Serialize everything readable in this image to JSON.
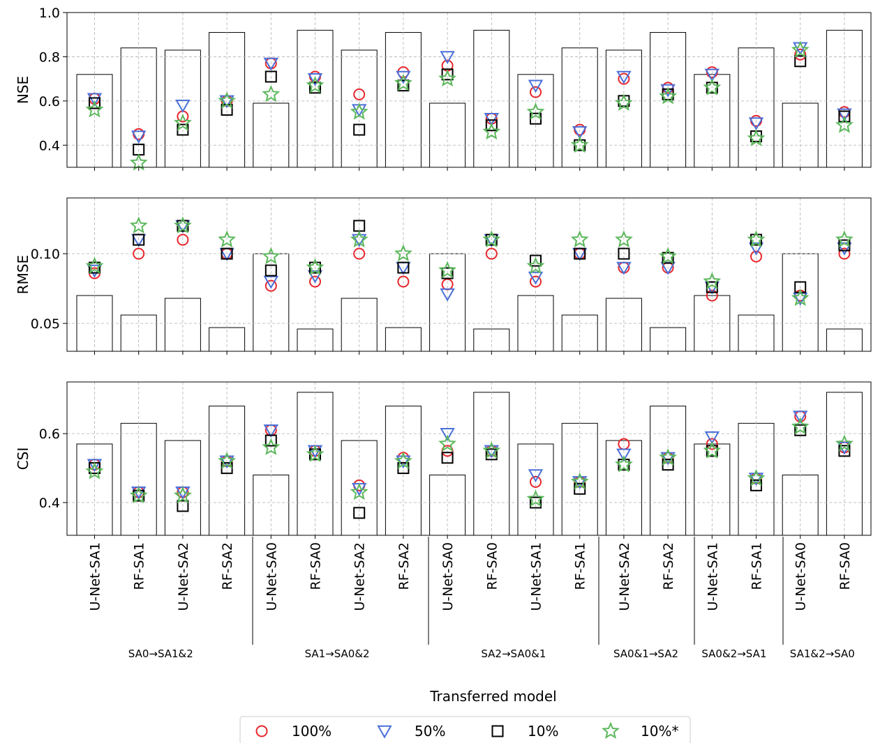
{
  "chart_data": {
    "type": "bar+scatter",
    "xlabel": "Transferred model",
    "categories": [
      "U-Net-SA1",
      "RF-SA1",
      "U-Net-SA2",
      "RF-SA2",
      "U-Net-SA0",
      "RF-SA0",
      "U-Net-SA2",
      "RF-SA2",
      "U-Net-SA0",
      "RF-SA0",
      "U-Net-SA1",
      "RF-SA1",
      "U-Net-SA2",
      "RF-SA2",
      "U-Net-SA1",
      "RF-SA1",
      "U-Net-SA0",
      "RF-SA0"
    ],
    "groups": [
      {
        "label": "SA0→SA1&2",
        "start": 0,
        "end": 3
      },
      {
        "label": "SA1→SA0&2",
        "start": 4,
        "end": 7
      },
      {
        "label": "SA2→SA0&1",
        "start": 8,
        "end": 11
      },
      {
        "label": "SA0&1→SA2",
        "start": 12,
        "end": 13
      },
      {
        "label": "SA0&2→SA1",
        "start": 14,
        "end": 15
      },
      {
        "label": "SA1&2→SA0",
        "start": 16,
        "end": 17
      }
    ],
    "legend": {
      "placement": "bottom-center",
      "items": [
        {
          "label": "100%",
          "marker": "circle",
          "color": "#e8262c"
        },
        {
          "label": "50%",
          "marker": "triangle-down",
          "color": "#4a6fd8"
        },
        {
          "label": "10%",
          "marker": "square",
          "color": "#000000"
        },
        {
          "label": "10%*",
          "marker": "star",
          "color": "#5cb85c"
        }
      ]
    },
    "panels": [
      {
        "ylabel": "NSE",
        "ylim": [
          0.3,
          1.0
        ],
        "yticks": [
          0.4,
          0.6,
          0.8,
          1.0
        ],
        "ytick_labels": [
          "0.4",
          "0.6",
          "0.8",
          "1.0"
        ],
        "grid": true,
        "bars": [
          0.72,
          0.84,
          0.83,
          0.91,
          0.59,
          0.92,
          0.83,
          0.91,
          0.59,
          0.92,
          0.72,
          0.84,
          0.83,
          0.91,
          0.72,
          0.84,
          0.59,
          0.92
        ],
        "series": [
          {
            "name": "100%",
            "values": [
              0.61,
              0.45,
              0.53,
              0.6,
              0.77,
              0.71,
              0.63,
              0.73,
              0.76,
              0.52,
              0.64,
              0.47,
              0.7,
              0.66,
              0.73,
              0.51,
              0.81,
              0.55
            ]
          },
          {
            "name": "50%",
            "values": [
              0.61,
              0.44,
              0.58,
              0.6,
              0.77,
              0.7,
              0.56,
              0.71,
              0.8,
              0.52,
              0.67,
              0.46,
              0.71,
              0.65,
              0.72,
              0.5,
              0.84,
              0.54
            ]
          },
          {
            "name": "10%",
            "values": [
              0.59,
              0.38,
              0.47,
              0.56,
              0.71,
              0.66,
              0.47,
              0.67,
              0.72,
              0.49,
              0.52,
              0.4,
              0.6,
              0.63,
              0.66,
              0.44,
              0.78,
              0.53
            ]
          },
          {
            "name": "10%*",
            "values": [
              0.56,
              0.32,
              0.5,
              0.6,
              0.63,
              0.67,
              0.55,
              0.68,
              0.7,
              0.46,
              0.55,
              0.4,
              0.59,
              0.62,
              0.66,
              0.43,
              0.83,
              0.49
            ]
          }
        ]
      },
      {
        "ylabel": "RMSE",
        "ylim": [
          0.03,
          0.14
        ],
        "yticks": [
          0.05,
          0.1
        ],
        "ytick_labels": [
          "0.05",
          "0.10"
        ],
        "grid": true,
        "bars": [
          0.07,
          0.056,
          0.068,
          0.047,
          0.1,
          0.046,
          0.068,
          0.047,
          0.1,
          0.046,
          0.07,
          0.056,
          0.068,
          0.047,
          0.07,
          0.056,
          0.1,
          0.046
        ],
        "series": [
          {
            "name": "100%",
            "values": [
              0.086,
              0.1,
              0.11,
              0.1,
              0.077,
              0.08,
              0.1,
              0.08,
              0.078,
              0.1,
              0.08,
              0.1,
              0.09,
              0.09,
              0.07,
              0.098,
              0.07,
              0.1
            ]
          },
          {
            "name": "50%",
            "values": [
              0.088,
              0.11,
              0.12,
              0.1,
              0.08,
              0.084,
              0.11,
              0.09,
              0.071,
              0.11,
              0.083,
              0.1,
              0.09,
              0.09,
              0.076,
              0.104,
              0.068,
              0.104
            ]
          },
          {
            "name": "10%",
            "values": [
              0.09,
              0.11,
              0.12,
              0.1,
              0.088,
              0.09,
              0.12,
              0.09,
              0.086,
              0.11,
              0.095,
              0.1,
              0.1,
              0.097,
              0.076,
              0.11,
              0.076,
              0.106
            ]
          },
          {
            "name": "10%*",
            "values": [
              0.091,
              0.12,
              0.12,
              0.11,
              0.098,
              0.09,
              0.11,
              0.1,
              0.088,
              0.11,
              0.091,
              0.11,
              0.11,
              0.098,
              0.08,
              0.11,
              0.068,
              0.11
            ]
          }
        ]
      },
      {
        "ylabel": "CSI",
        "ylim": [
          0.305,
          0.75
        ],
        "yticks": [
          0.4,
          0.6
        ],
        "ytick_labels": [
          "0.4",
          "0.6"
        ],
        "grid": true,
        "bars": [
          0.57,
          0.63,
          0.58,
          0.68,
          0.48,
          0.72,
          0.58,
          0.68,
          0.48,
          0.72,
          0.57,
          0.63,
          0.58,
          0.68,
          0.57,
          0.63,
          0.48,
          0.72
        ],
        "series": [
          {
            "name": "100%",
            "values": [
              0.51,
              0.43,
              0.43,
              0.52,
              0.61,
              0.55,
              0.45,
              0.53,
              0.55,
              0.55,
              0.46,
              0.46,
              0.57,
              0.53,
              0.57,
              0.47,
              0.65,
              0.56
            ]
          },
          {
            "name": "50%",
            "values": [
              0.51,
              0.43,
              0.43,
              0.52,
              0.61,
              0.55,
              0.44,
              0.52,
              0.6,
              0.55,
              0.48,
              0.46,
              0.54,
              0.53,
              0.59,
              0.47,
              0.65,
              0.56
            ]
          },
          {
            "name": "10%",
            "values": [
              0.5,
              0.42,
              0.39,
              0.5,
              0.58,
              0.54,
              0.37,
              0.5,
              0.53,
              0.54,
              0.4,
              0.44,
              0.51,
              0.51,
              0.55,
              0.45,
              0.61,
              0.55
            ]
          },
          {
            "name": "10%*",
            "values": [
              0.49,
              0.42,
              0.42,
              0.52,
              0.56,
              0.54,
              0.43,
              0.52,
              0.57,
              0.55,
              0.41,
              0.46,
              0.51,
              0.53,
              0.55,
              0.47,
              0.62,
              0.57
            ]
          }
        ]
      }
    ]
  }
}
